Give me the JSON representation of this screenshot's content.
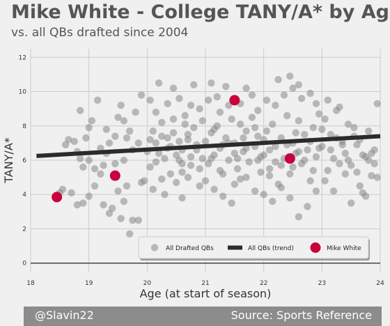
{
  "header": {
    "title": "Mike White - College TANY/A* by Age",
    "subtitle": "vs. all QBs drafted since 2004"
  },
  "footer": {
    "left": "@Slavin22",
    "right": "Source: Sports Reference"
  },
  "colors": {
    "background": "#f0f0f0",
    "grid": "#cbcbcb",
    "drafted": "#888888",
    "trend": "#2b2b2b",
    "mike_white": "#c8003c",
    "text": "#555555",
    "footer_bg": "#8c8c8c"
  },
  "chart_data": {
    "type": "scatter",
    "xlabel": "Age (at start of season)",
    "ylabel": "TANY/A*",
    "xlim": [
      18,
      24
    ],
    "ylim": [
      -0.5,
      12.5
    ],
    "xticks": [
      18,
      19,
      20,
      21,
      22,
      23,
      24
    ],
    "yticks": [
      0,
      2,
      4,
      6,
      8,
      10,
      12
    ],
    "grid": true,
    "legend_position": "bottom-right",
    "legend": [
      "All Drafted QBs",
      "All QBs (trend)",
      "Mike White"
    ],
    "series": [
      {
        "name": "All Drafted QBs",
        "kind": "scatter",
        "points": [
          [
            18.5,
            4.1
          ],
          [
            18.55,
            4.3
          ],
          [
            18.6,
            6.9
          ],
          [
            18.7,
            4.1
          ],
          [
            18.8,
            3.4
          ],
          [
            18.85,
            8.9
          ],
          [
            18.9,
            3.5
          ],
          [
            19.0,
            3.9
          ],
          [
            18.95,
            7.3
          ],
          [
            18.85,
            6.1
          ],
          [
            19.1,
            4.5
          ],
          [
            19.2,
            5.2
          ],
          [
            19.25,
            3.4
          ],
          [
            19.3,
            6.4
          ],
          [
            19.35,
            2.9
          ],
          [
            19.4,
            3.2
          ],
          [
            19.5,
            4.2
          ],
          [
            19.55,
            2.6
          ],
          [
            19.6,
            3.6
          ],
          [
            19.65,
            4.5
          ],
          [
            19.7,
            1.7
          ],
          [
            19.75,
            2.5
          ],
          [
            19.85,
            2.5
          ],
          [
            19.9,
            4.7
          ],
          [
            19.95,
            4.8
          ],
          [
            19.45,
            5.8
          ],
          [
            19.3,
            7.8
          ],
          [
            19.5,
            8.5
          ],
          [
            19.6,
            8.3
          ],
          [
            19.7,
            7.7
          ],
          [
            19.8,
            8.8
          ],
          [
            19.9,
            9.8
          ],
          [
            19.15,
            9.5
          ],
          [
            19.55,
            9.2
          ],
          [
            19.0,
            7.9
          ],
          [
            19.05,
            8.3
          ],
          [
            19.6,
            6.0
          ],
          [
            19.75,
            6.6
          ],
          [
            19.25,
            5.7
          ],
          [
            18.65,
            7.2
          ],
          [
            18.75,
            7.1
          ],
          [
            18.8,
            6.5
          ],
          [
            18.9,
            5.6
          ],
          [
            19.0,
            6.0
          ],
          [
            19.1,
            5.5
          ],
          [
            19.2,
            6.7
          ],
          [
            19.35,
            7.0
          ],
          [
            19.45,
            7.4
          ],
          [
            19.65,
            7.3
          ],
          [
            19.85,
            7.0
          ],
          [
            20.0,
            6.5
          ],
          [
            20.05,
            7.2
          ],
          [
            20.1,
            7.7
          ],
          [
            20.15,
            5.9
          ],
          [
            20.2,
            6.4
          ],
          [
            20.25,
            8.2
          ],
          [
            20.3,
            6.1
          ],
          [
            20.35,
            7.3
          ],
          [
            20.4,
            5.2
          ],
          [
            20.45,
            8.4
          ],
          [
            20.5,
            6.3
          ],
          [
            20.55,
            7.1
          ],
          [
            20.6,
            5.8
          ],
          [
            20.65,
            8.1
          ],
          [
            20.7,
            7.5
          ],
          [
            20.75,
            6.2
          ],
          [
            20.8,
            7.9
          ],
          [
            20.85,
            6.6
          ],
          [
            20.9,
            5.5
          ],
          [
            20.95,
            8.3
          ],
          [
            20.05,
            9.5
          ],
          [
            20.15,
            8.8
          ],
          [
            20.35,
            9.3
          ],
          [
            20.55,
            9.6
          ],
          [
            20.75,
            9.2
          ],
          [
            20.9,
            9.0
          ],
          [
            20.2,
            10.5
          ],
          [
            20.45,
            10.2
          ],
          [
            20.8,
            10.4
          ],
          [
            20.65,
            8.6
          ],
          [
            20.1,
            4.3
          ],
          [
            20.3,
            4.0
          ],
          [
            20.5,
            4.7
          ],
          [
            20.7,
            5.0
          ],
          [
            20.9,
            4.5
          ],
          [
            20.6,
            3.8
          ],
          [
            20.25,
            4.9
          ],
          [
            20.4,
            6.8
          ],
          [
            20.6,
            6.6
          ],
          [
            20.85,
            6.9
          ],
          [
            20.15,
            7.0
          ],
          [
            20.35,
            6.7
          ],
          [
            20.55,
            6.0
          ],
          [
            20.75,
            5.7
          ],
          [
            20.95,
            6.1
          ],
          [
            20.05,
            5.6
          ],
          [
            20.45,
            7.6
          ],
          [
            20.7,
            7.2
          ],
          [
            20.25,
            7.4
          ],
          [
            20.6,
            5.3
          ],
          [
            21.0,
            7.1
          ],
          [
            21.05,
            5.8
          ],
          [
            21.1,
            7.6
          ],
          [
            21.15,
            6.3
          ],
          [
            21.2,
            8.0
          ],
          [
            21.25,
            6.7
          ],
          [
            21.3,
            5.2
          ],
          [
            21.35,
            7.3
          ],
          [
            21.4,
            6.0
          ],
          [
            21.45,
            8.4
          ],
          [
            21.5,
            7.0
          ],
          [
            21.55,
            5.5
          ],
          [
            21.6,
            8.1
          ],
          [
            21.65,
            6.5
          ],
          [
            21.7,
            7.7
          ],
          [
            21.75,
            5.9
          ],
          [
            21.8,
            8.5
          ],
          [
            21.85,
            6.8
          ],
          [
            21.9,
            7.4
          ],
          [
            21.95,
            6.2
          ],
          [
            21.05,
            9.5
          ],
          [
            21.2,
            9.7
          ],
          [
            21.4,
            9.2
          ],
          [
            21.6,
            9.3
          ],
          [
            21.8,
            9.8
          ],
          [
            21.1,
            10.5
          ],
          [
            21.35,
            10.3
          ],
          [
            21.7,
            10.2
          ],
          [
            21.25,
            8.8
          ],
          [
            21.9,
            8.9
          ],
          [
            21.0,
            4.8
          ],
          [
            21.15,
            4.3
          ],
          [
            21.3,
            3.9
          ],
          [
            21.5,
            4.6
          ],
          [
            21.7,
            5.0
          ],
          [
            21.85,
            4.2
          ],
          [
            21.45,
            3.5
          ],
          [
            21.6,
            4.9
          ],
          [
            21.25,
            5.4
          ],
          [
            21.95,
            5.3
          ],
          [
            21.1,
            6.1
          ],
          [
            21.3,
            6.9
          ],
          [
            21.5,
            6.4
          ],
          [
            21.7,
            6.7
          ],
          [
            21.9,
            6.0
          ],
          [
            21.15,
            7.8
          ],
          [
            21.4,
            7.0
          ],
          [
            21.65,
            7.3
          ],
          [
            21.85,
            7.9
          ],
          [
            21.55,
            6.1
          ],
          [
            22.0,
            6.3
          ],
          [
            22.05,
            7.7
          ],
          [
            22.1,
            5.5
          ],
          [
            22.15,
            8.1
          ],
          [
            22.2,
            6.8
          ],
          [
            22.25,
            4.6
          ],
          [
            22.3,
            7.3
          ],
          [
            22.35,
            6.1
          ],
          [
            22.4,
            8.6
          ],
          [
            22.45,
            5.2
          ],
          [
            22.5,
            7.0
          ],
          [
            22.55,
            6.4
          ],
          [
            22.6,
            8.3
          ],
          [
            22.65,
            5.8
          ],
          [
            22.7,
            7.5
          ],
          [
            22.75,
            6.6
          ],
          [
            22.8,
            4.8
          ],
          [
            22.85,
            7.9
          ],
          [
            22.9,
            6.2
          ],
          [
            22.95,
            8.7
          ],
          [
            22.05,
            9.5
          ],
          [
            22.2,
            9.2
          ],
          [
            22.35,
            9.8
          ],
          [
            22.5,
            10.2
          ],
          [
            22.65,
            9.6
          ],
          [
            22.8,
            9.9
          ],
          [
            22.25,
            10.7
          ],
          [
            22.45,
            10.9
          ],
          [
            22.6,
            10.4
          ],
          [
            22.9,
            9.3
          ],
          [
            22.0,
            4.0
          ],
          [
            22.15,
            3.6
          ],
          [
            22.3,
            4.4
          ],
          [
            22.45,
            3.8
          ],
          [
            22.6,
            2.7
          ],
          [
            22.75,
            3.3
          ],
          [
            22.9,
            4.2
          ],
          [
            22.1,
            5.1
          ],
          [
            22.5,
            5.6
          ],
          [
            22.85,
            5.4
          ],
          [
            22.0,
            7.2
          ],
          [
            22.2,
            5.9
          ],
          [
            22.4,
            6.9
          ],
          [
            22.6,
            6.5
          ],
          [
            22.8,
            7.1
          ],
          [
            22.1,
            6.6
          ],
          [
            22.3,
            5.7
          ],
          [
            22.7,
            6.0
          ],
          [
            22.95,
            6.7
          ],
          [
            22.55,
            7.6
          ],
          [
            23.0,
            6.8
          ],
          [
            23.05,
            8.4
          ],
          [
            23.1,
            5.4
          ],
          [
            23.15,
            7.5
          ],
          [
            23.2,
            6.1
          ],
          [
            23.25,
            8.9
          ],
          [
            23.3,
            5.8
          ],
          [
            23.35,
            7.1
          ],
          [
            23.4,
            6.4
          ],
          [
            23.45,
            8.1
          ],
          [
            23.5,
            5.7
          ],
          [
            23.55,
            7.4
          ],
          [
            23.6,
            6.9
          ],
          [
            23.65,
            4.5
          ],
          [
            23.7,
            6.3
          ],
          [
            23.75,
            3.9
          ],
          [
            23.8,
            7.7
          ],
          [
            23.85,
            5.1
          ],
          [
            23.9,
            6.6
          ],
          [
            23.95,
            9.3
          ],
          [
            23.1,
            9.5
          ],
          [
            23.3,
            9.1
          ],
          [
            23.5,
            3.5
          ],
          [
            23.7,
            4.1
          ],
          [
            23.9,
            5.8
          ],
          [
            23.05,
            4.8
          ],
          [
            23.2,
            4.2
          ],
          [
            23.4,
            5.2
          ],
          [
            23.6,
            5.3
          ],
          [
            23.8,
            6.0
          ],
          [
            23.15,
            6.6
          ],
          [
            23.35,
            6.9
          ],
          [
            23.55,
            7.9
          ],
          [
            23.75,
            6.2
          ],
          [
            23.95,
            5.0
          ],
          [
            23.0,
            7.8
          ],
          [
            23.25,
            7.3
          ],
          [
            23.45,
            6.0
          ],
          [
            23.65,
            7.2
          ],
          [
            23.85,
            6.4
          ]
        ]
      },
      {
        "name": "All QBs (trend)",
        "kind": "line",
        "x": [
          18.1,
          24.0
        ],
        "y": [
          6.25,
          7.4
        ]
      },
      {
        "name": "Mike White",
        "kind": "scatter",
        "points": [
          [
            18.45,
            3.85
          ],
          [
            19.45,
            5.1
          ],
          [
            21.5,
            9.5
          ],
          [
            22.45,
            6.1
          ]
        ]
      }
    ]
  }
}
